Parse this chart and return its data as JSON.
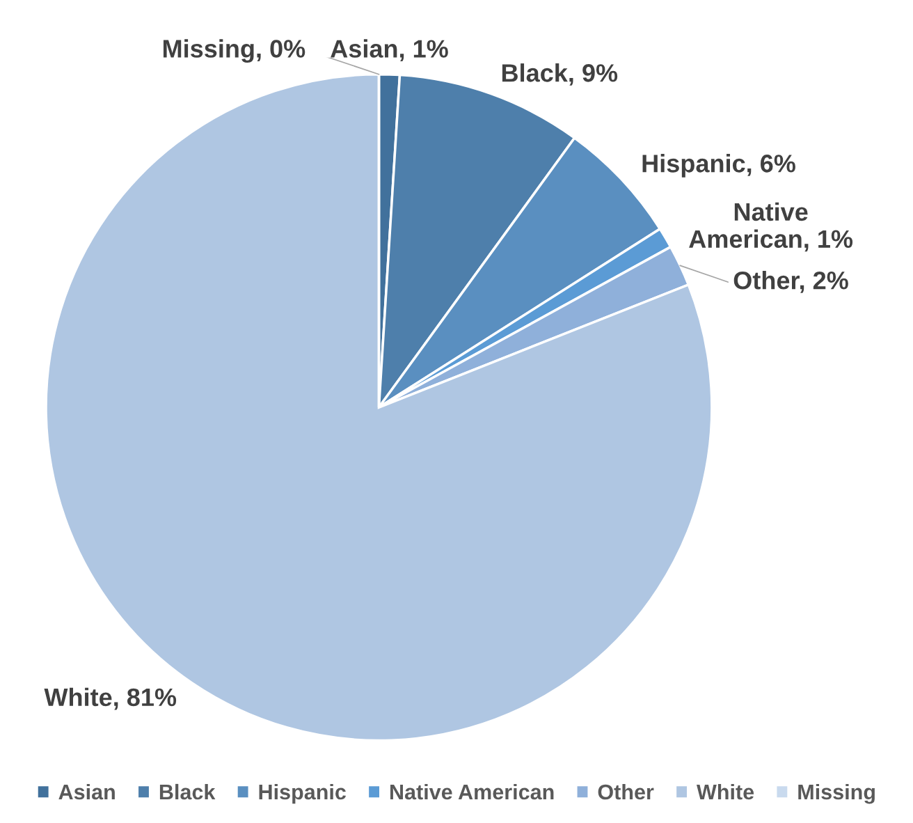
{
  "chart_data": {
    "type": "pie",
    "categories": [
      "Asian",
      "Black",
      "Hispanic",
      "Native American",
      "Other",
      "White",
      "Missing"
    ],
    "values": [
      1,
      9,
      6,
      1,
      2,
      81,
      0
    ],
    "colors": [
      "#41719c",
      "#4e7fab",
      "#5a8fc0",
      "#5b9bd5",
      "#8fb0da",
      "#afc6e2",
      "#c9daee"
    ],
    "value_labels": [
      "Asian, 1%",
      "Black, 9%",
      "Hispanic, 6%",
      "Native\nAmerican, 1%",
      "Other, 2%",
      "White, 81%",
      "Missing, 0%"
    ],
    "legend": "bottom"
  }
}
